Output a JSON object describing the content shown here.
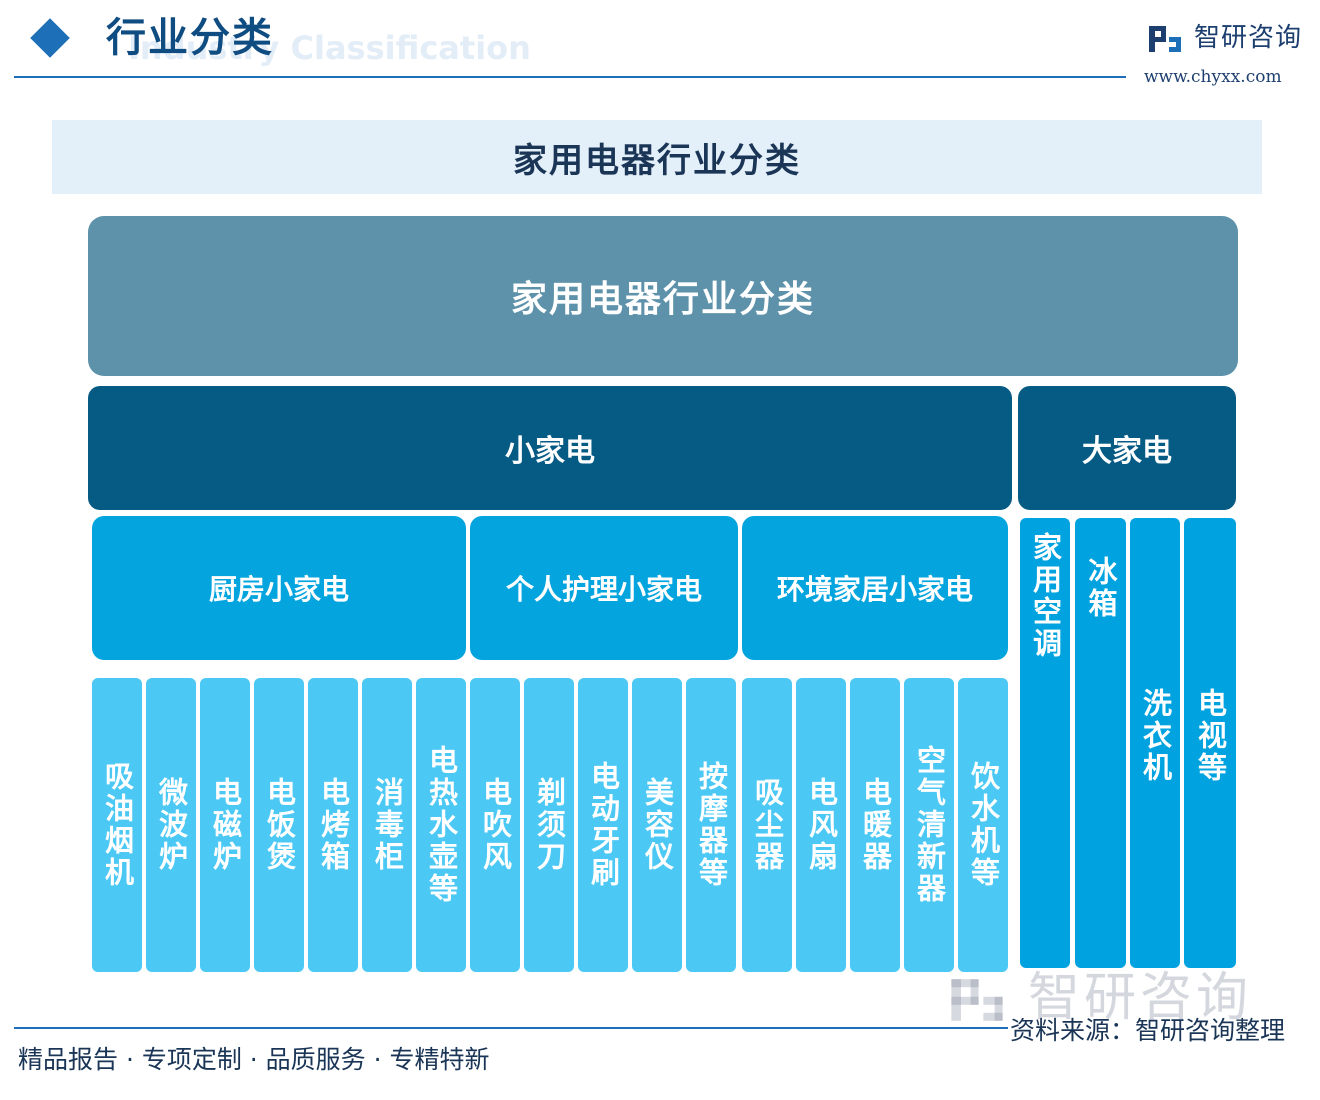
{
  "header": {
    "title": "行业分类",
    "subtitle": "Industry Classification",
    "logo_name": "智研咨询",
    "logo_url": "www.chyxx.com"
  },
  "banner_title": "家用电器行业分类",
  "diagram": {
    "root": "家用电器行业分类",
    "small_appliances": {
      "label": "小家电",
      "groups": [
        {
          "label": "厨房小家电",
          "items": [
            "吸油烟机",
            "微波炉",
            "电磁炉",
            "电饭煲",
            "电烤箱",
            "消毒柜",
            "电热水壶等"
          ]
        },
        {
          "label": "个人护理小家电",
          "items": [
            "电吹风",
            "剃须刀",
            "电动牙刷",
            "美容仪",
            "按摩器等"
          ]
        },
        {
          "label": "环境家居小家电",
          "items": [
            "吸尘器",
            "电风扇",
            "电暖器",
            "空气清新器",
            "饮水机等"
          ]
        }
      ]
    },
    "large_appliances": {
      "label": "大家电",
      "items": [
        "家用空调",
        "冰箱",
        "洗衣机",
        "电视等"
      ]
    }
  },
  "footer": {
    "slogan": "精品报告 · 专项定制 · 品质服务 · 专精特新",
    "source": "资料来源：智研咨询整理",
    "watermark": "智研咨询"
  },
  "colors": {
    "root": "#5e92aa",
    "level2": "#055b84",
    "level3": "#04a4df",
    "leaf": "#4bc8f4",
    "large_leaf": "#00a3df",
    "brand": "#1d6fb8"
  }
}
